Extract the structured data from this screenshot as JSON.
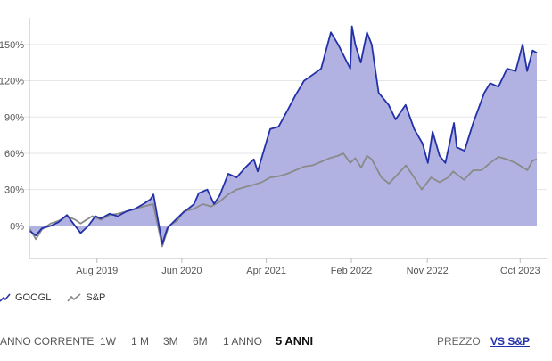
{
  "chart_data": {
    "type": "area",
    "title": "",
    "xlabel": "",
    "ylabel": "",
    "y_unit": "%",
    "ylim": [
      -27,
      172
    ],
    "y_ticks": [
      0,
      30,
      60,
      90,
      120,
      150
    ],
    "y_tick_labels": [
      "0%",
      "30%",
      "60%",
      "90%",
      "120%",
      "150%"
    ],
    "x_range": [
      "2018-12-01",
      "2023-11-30"
    ],
    "x_ticks": [
      "2019-08-01",
      "2020-06-01",
      "2021-04-01",
      "2022-02-01",
      "2022-11-01",
      "2023-10-01"
    ],
    "x_tick_labels": [
      "Aug 2019",
      "Jun 2020",
      "Apr 2021",
      "Feb 2022",
      "Nov 2022",
      "Oct 2023"
    ],
    "grid": "horizontal",
    "legend_position": "bottom-left",
    "series": [
      {
        "name": "GOOGL",
        "color": "#2331a8",
        "fill": "#aeaee0",
        "points": [
          [
            "2018-12-01",
            -4
          ],
          [
            "2018-12-24",
            -8
          ],
          [
            "2019-01-15",
            -2
          ],
          [
            "2019-02-15",
            0
          ],
          [
            "2019-03-15",
            3
          ],
          [
            "2019-04-15",
            9
          ],
          [
            "2019-05-01",
            4
          ],
          [
            "2019-06-03",
            -6
          ],
          [
            "2019-07-01",
            0
          ],
          [
            "2019-07-26",
            8
          ],
          [
            "2019-08-15",
            6
          ],
          [
            "2019-09-15",
            10
          ],
          [
            "2019-10-15",
            8
          ],
          [
            "2019-11-15",
            12
          ],
          [
            "2019-12-15",
            14
          ],
          [
            "2020-01-15",
            18
          ],
          [
            "2020-02-10",
            22
          ],
          [
            "2020-02-20",
            26
          ],
          [
            "2020-03-05",
            8
          ],
          [
            "2020-03-23",
            -15
          ],
          [
            "2020-04-10",
            -2
          ],
          [
            "2020-05-01",
            3
          ],
          [
            "2020-06-01",
            10
          ],
          [
            "2020-07-15",
            18
          ],
          [
            "2020-08-01",
            27
          ],
          [
            "2020-09-01",
            30
          ],
          [
            "2020-09-25",
            18
          ],
          [
            "2020-10-15",
            25
          ],
          [
            "2020-11-15",
            43
          ],
          [
            "2020-12-15",
            40
          ],
          [
            "2021-01-15",
            48
          ],
          [
            "2021-02-15",
            55
          ],
          [
            "2021-03-01",
            45
          ],
          [
            "2021-03-20",
            60
          ],
          [
            "2021-04-15",
            80
          ],
          [
            "2021-05-15",
            82
          ],
          [
            "2021-06-15",
            95
          ],
          [
            "2021-07-15",
            108
          ],
          [
            "2021-08-15",
            120
          ],
          [
            "2021-09-15",
            125
          ],
          [
            "2021-10-15",
            130
          ],
          [
            "2021-11-19",
            160
          ],
          [
            "2021-12-15",
            150
          ],
          [
            "2022-01-28",
            130
          ],
          [
            "2022-02-03",
            165
          ],
          [
            "2022-02-15",
            150
          ],
          [
            "2022-03-07",
            135
          ],
          [
            "2022-03-29",
            160
          ],
          [
            "2022-04-15",
            150
          ],
          [
            "2022-05-10",
            110
          ],
          [
            "2022-06-15",
            100
          ],
          [
            "2022-07-10",
            88
          ],
          [
            "2022-08-15",
            100
          ],
          [
            "2022-09-15",
            80
          ],
          [
            "2022-10-15",
            68
          ],
          [
            "2022-11-03",
            52
          ],
          [
            "2022-11-20",
            78
          ],
          [
            "2022-12-15",
            58
          ],
          [
            "2023-01-05",
            52
          ],
          [
            "2023-02-05",
            85
          ],
          [
            "2023-02-15",
            65
          ],
          [
            "2023-03-15",
            62
          ],
          [
            "2023-04-15",
            85
          ],
          [
            "2023-05-25",
            110
          ],
          [
            "2023-06-15",
            118
          ],
          [
            "2023-07-15",
            115
          ],
          [
            "2023-08-15",
            130
          ],
          [
            "2023-09-15",
            128
          ],
          [
            "2023-10-10",
            150
          ],
          [
            "2023-10-26",
            128
          ],
          [
            "2023-11-15",
            145
          ],
          [
            "2023-11-30",
            143
          ]
        ]
      },
      {
        "name": "S&P",
        "color": "#8a8a8a",
        "points": [
          [
            "2018-12-01",
            -2
          ],
          [
            "2018-12-24",
            -11
          ],
          [
            "2019-01-15",
            -3
          ],
          [
            "2019-02-15",
            2
          ],
          [
            "2019-03-15",
            4
          ],
          [
            "2019-04-15",
            8
          ],
          [
            "2019-05-15",
            5
          ],
          [
            "2019-06-03",
            2
          ],
          [
            "2019-07-15",
            8
          ],
          [
            "2019-08-15",
            5
          ],
          [
            "2019-09-15",
            9
          ],
          [
            "2019-10-15",
            10
          ],
          [
            "2019-11-15",
            12
          ],
          [
            "2019-12-15",
            14
          ],
          [
            "2020-01-15",
            16
          ],
          [
            "2020-02-19",
            18
          ],
          [
            "2020-03-23",
            -17
          ],
          [
            "2020-04-15",
            0
          ],
          [
            "2020-05-15",
            4
          ],
          [
            "2020-06-08",
            12
          ],
          [
            "2020-07-15",
            14
          ],
          [
            "2020-08-15",
            18
          ],
          [
            "2020-09-15",
            16
          ],
          [
            "2020-10-15",
            20
          ],
          [
            "2020-11-15",
            26
          ],
          [
            "2020-12-15",
            30
          ],
          [
            "2021-01-15",
            32
          ],
          [
            "2021-02-15",
            34
          ],
          [
            "2021-03-15",
            36
          ],
          [
            "2021-04-15",
            40
          ],
          [
            "2021-05-15",
            41
          ],
          [
            "2021-06-15",
            43
          ],
          [
            "2021-07-15",
            46
          ],
          [
            "2021-08-15",
            49
          ],
          [
            "2021-09-15",
            50
          ],
          [
            "2021-10-15",
            53
          ],
          [
            "2021-11-15",
            56
          ],
          [
            "2021-12-15",
            58
          ],
          [
            "2022-01-03",
            60
          ],
          [
            "2022-01-28",
            52
          ],
          [
            "2022-02-15",
            56
          ],
          [
            "2022-03-08",
            48
          ],
          [
            "2022-03-29",
            58
          ],
          [
            "2022-04-15",
            55
          ],
          [
            "2022-05-20",
            40
          ],
          [
            "2022-06-16",
            35
          ],
          [
            "2022-07-15",
            42
          ],
          [
            "2022-08-16",
            50
          ],
          [
            "2022-09-15",
            40
          ],
          [
            "2022-10-12",
            30
          ],
          [
            "2022-11-15",
            40
          ],
          [
            "2022-12-15",
            36
          ],
          [
            "2023-01-15",
            40
          ],
          [
            "2023-02-02",
            45
          ],
          [
            "2023-03-13",
            38
          ],
          [
            "2023-04-15",
            46
          ],
          [
            "2023-05-15",
            46
          ],
          [
            "2023-06-15",
            52
          ],
          [
            "2023-07-15",
            57
          ],
          [
            "2023-08-15",
            55
          ],
          [
            "2023-09-15",
            52
          ],
          [
            "2023-10-27",
            46
          ],
          [
            "2023-11-15",
            54
          ],
          [
            "2023-11-30",
            55
          ]
        ]
      }
    ]
  },
  "controls": {
    "ranges": [
      {
        "label": "ANNO CORRENTE",
        "active": false
      },
      {
        "label": "1W",
        "active": false
      },
      {
        "label": "1 M",
        "active": false
      },
      {
        "label": "3M",
        "active": false
      },
      {
        "label": "6M",
        "active": false
      },
      {
        "label": "1 ANNO",
        "active": false
      },
      {
        "label": "5 ANNI",
        "active": true
      }
    ],
    "modes": [
      {
        "label": "PREZZO",
        "active": false
      },
      {
        "label": "VS S&P",
        "active": true
      }
    ]
  }
}
